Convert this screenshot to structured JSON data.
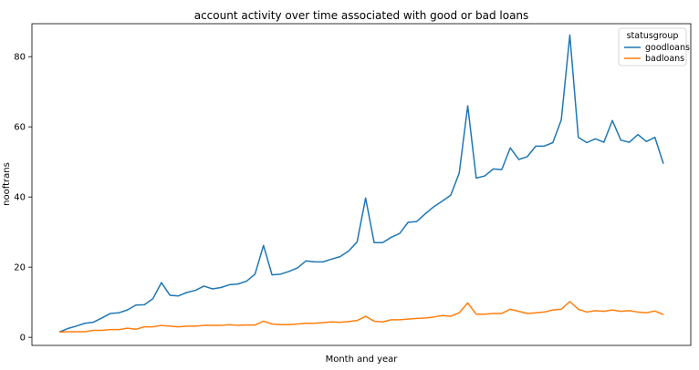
{
  "chart_data": {
    "type": "line",
    "title": "account activity over time associated with good or bad loans",
    "xlabel": "Month and year",
    "ylabel": "nooftrans",
    "ylim": [
      -2.3,
      89.4
    ],
    "yticks": [
      0,
      20,
      40,
      60,
      80
    ],
    "grid": false,
    "legend": {
      "title": "statusgroup",
      "placement": "top-right"
    },
    "x": [
      0,
      1,
      2,
      3,
      4,
      5,
      6,
      7,
      8,
      9,
      10,
      11,
      12,
      13,
      14,
      15,
      16,
      17,
      18,
      19,
      20,
      21,
      22,
      23,
      24,
      25,
      26,
      27,
      28,
      29,
      30,
      31,
      32,
      33,
      34,
      35,
      36,
      37,
      38,
      39,
      40,
      41,
      42,
      43,
      44,
      45,
      46,
      47,
      48,
      49,
      50,
      51,
      52,
      53,
      54,
      55,
      56,
      57,
      58,
      59,
      60,
      61,
      62,
      63,
      64,
      65,
      66,
      67,
      68,
      69,
      70,
      71
    ],
    "series": [
      {
        "name": "goodloans",
        "color": "#1f77b4",
        "values": [
          1.5,
          2.5,
          3.2,
          4.0,
          4.3,
          5.5,
          6.8,
          7.0,
          7.8,
          9.2,
          9.3,
          11.0,
          15.6,
          12.0,
          11.8,
          12.8,
          13.4,
          14.6,
          13.8,
          14.2,
          15.0,
          15.2,
          16.0,
          18.0,
          26.2,
          17.8,
          18.0,
          18.8,
          19.8,
          21.8,
          21.5,
          21.5,
          22.3,
          23.0,
          24.6,
          27.2,
          39.7,
          27.0,
          27.0,
          28.5,
          29.6,
          32.8,
          33.0,
          35.2,
          37.2,
          38.8,
          40.5,
          46.8,
          66.0,
          45.4,
          46.0,
          48.0,
          47.8,
          54.0,
          50.7,
          51.5,
          54.5,
          54.5,
          55.5,
          62.0,
          86.2,
          57.0,
          55.5,
          56.6,
          55.6,
          61.8,
          56.2,
          55.6,
          57.8,
          55.8,
          57.0,
          49.5
        ]
      },
      {
        "name": "badloans",
        "color": "#ff7f0e",
        "values": [
          1.5,
          1.6,
          1.6,
          1.6,
          2.0,
          2.0,
          2.2,
          2.2,
          2.6,
          2.3,
          3.0,
          3.0,
          3.4,
          3.2,
          3.0,
          3.2,
          3.2,
          3.4,
          3.4,
          3.4,
          3.6,
          3.4,
          3.5,
          3.5,
          4.6,
          3.8,
          3.6,
          3.6,
          3.8,
          4.0,
          4.0,
          4.2,
          4.4,
          4.3,
          4.5,
          4.8,
          6.0,
          4.6,
          4.4,
          5.0,
          5.0,
          5.2,
          5.4,
          5.5,
          5.8,
          6.2,
          6.0,
          7.0,
          9.8,
          6.6,
          6.6,
          6.8,
          6.8,
          8.0,
          7.4,
          6.8,
          7.0,
          7.2,
          7.8,
          8.0,
          10.2,
          8.0,
          7.2,
          7.6,
          7.4,
          7.8,
          7.4,
          7.6,
          7.2,
          7.0,
          7.5,
          6.5
        ]
      }
    ]
  }
}
